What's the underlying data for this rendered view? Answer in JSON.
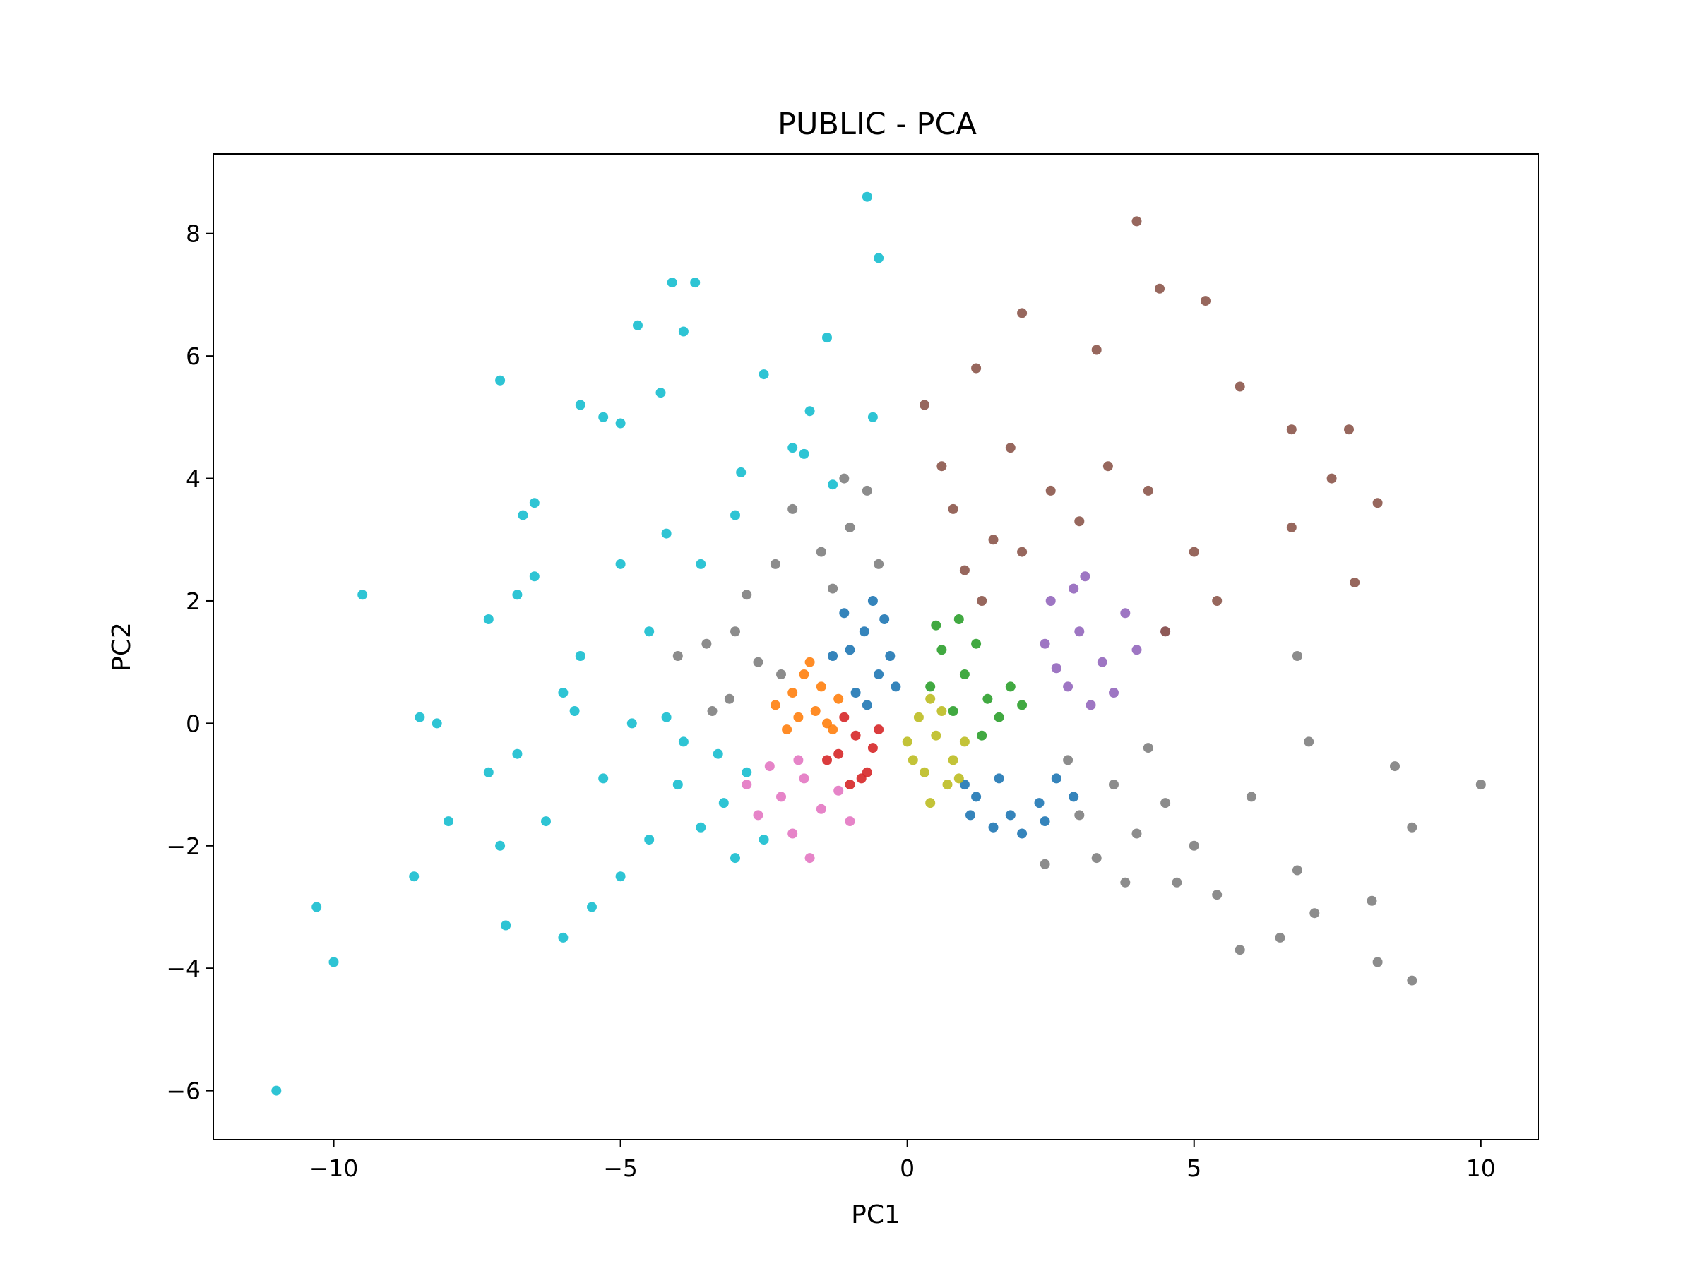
{
  "chart_data": {
    "type": "scatter",
    "title": "PUBLIC - PCA",
    "xlabel": "PC1",
    "ylabel": "PC2",
    "xlim": [
      -12.1,
      11
    ],
    "ylim": [
      -6.8,
      9.3
    ],
    "xticks": [
      -10,
      -5,
      0,
      5,
      10
    ],
    "xtick_labels": [
      "−10",
      "−5",
      "0",
      "5",
      "10"
    ],
    "yticks": [
      -6,
      -4,
      -2,
      0,
      2,
      4,
      6,
      8
    ],
    "ytick_labels": [
      "−6",
      "−4",
      "−2",
      "0",
      "2",
      "4",
      "6",
      "8"
    ],
    "grid": false,
    "legend": "none",
    "series": [
      {
        "color": "#1f77b4",
        "points": [
          [
            -0.75,
            1.5
          ],
          [
            -0.6,
            2.0
          ],
          [
            -1.0,
            1.2
          ],
          [
            -0.5,
            0.8
          ],
          [
            -0.9,
            0.5
          ],
          [
            -1.3,
            1.1
          ],
          [
            -0.4,
            1.7
          ],
          [
            -0.2,
            0.6
          ],
          [
            -0.7,
            0.3
          ],
          [
            -1.1,
            1.8
          ],
          [
            -0.3,
            1.1
          ],
          [
            1.2,
            -1.2
          ],
          [
            1.8,
            -1.5
          ],
          [
            2.3,
            -1.3
          ],
          [
            1.5,
            -1.7
          ],
          [
            2.6,
            -0.9
          ],
          [
            2.0,
            -1.8
          ],
          [
            1.0,
            -1.0
          ],
          [
            2.9,
            -1.2
          ],
          [
            2.4,
            -1.6
          ],
          [
            1.6,
            -0.9
          ],
          [
            1.1,
            -1.5
          ]
        ]
      },
      {
        "color": "#ff7f0e",
        "points": [
          [
            -1.6,
            0.2
          ],
          [
            -2.0,
            0.5
          ],
          [
            -1.4,
            0.0
          ],
          [
            -1.8,
            0.8
          ],
          [
            -2.3,
            0.3
          ],
          [
            -1.2,
            0.4
          ],
          [
            -1.9,
            0.1
          ],
          [
            -1.5,
            0.6
          ],
          [
            -2.1,
            -0.1
          ],
          [
            -1.7,
            1.0
          ],
          [
            -1.3,
            -0.1
          ]
        ]
      },
      {
        "color": "#2ca02c",
        "points": [
          [
            0.6,
            1.2
          ],
          [
            1.0,
            0.8
          ],
          [
            1.4,
            0.4
          ],
          [
            0.8,
            0.2
          ],
          [
            1.8,
            0.6
          ],
          [
            0.5,
            1.6
          ],
          [
            1.2,
            1.3
          ],
          [
            1.6,
            0.1
          ],
          [
            2.0,
            0.3
          ],
          [
            0.9,
            1.7
          ],
          [
            1.3,
            -0.2
          ],
          [
            0.4,
            0.6
          ]
        ]
      },
      {
        "color": "#d62728",
        "points": [
          [
            -0.9,
            -0.2
          ],
          [
            -1.2,
            -0.5
          ],
          [
            -0.7,
            -0.8
          ],
          [
            -1.0,
            -1.0
          ],
          [
            -0.6,
            -0.4
          ],
          [
            -1.4,
            -0.6
          ],
          [
            -0.8,
            -0.9
          ],
          [
            -0.5,
            -0.1
          ],
          [
            -1.1,
            0.1
          ]
        ]
      },
      {
        "color": "#9467bd",
        "points": [
          [
            3.0,
            1.5
          ],
          [
            3.4,
            1.0
          ],
          [
            2.6,
            0.9
          ],
          [
            3.8,
            1.8
          ],
          [
            2.9,
            2.2
          ],
          [
            3.6,
            0.5
          ],
          [
            2.4,
            1.3
          ],
          [
            4.0,
            1.2
          ],
          [
            3.2,
            0.3
          ],
          [
            4.5,
            1.5
          ],
          [
            2.8,
            0.6
          ],
          [
            3.1,
            2.4
          ],
          [
            2.5,
            2.0
          ]
        ]
      },
      {
        "color": "#8c564b",
        "points": [
          [
            1.0,
            2.5
          ],
          [
            1.5,
            3.0
          ],
          [
            0.8,
            3.5
          ],
          [
            2.0,
            2.8
          ],
          [
            1.3,
            2.0
          ],
          [
            2.5,
            3.8
          ],
          [
            0.6,
            4.2
          ],
          [
            1.8,
            4.5
          ],
          [
            3.0,
            3.3
          ],
          [
            3.5,
            4.2
          ],
          [
            4.2,
            3.8
          ],
          [
            5.0,
            2.8
          ],
          [
            1.2,
            5.8
          ],
          [
            2.0,
            6.7
          ],
          [
            4.0,
            8.2
          ],
          [
            4.4,
            7.1
          ],
          [
            5.2,
            6.9
          ],
          [
            5.8,
            5.5
          ],
          [
            6.7,
            4.8
          ],
          [
            7.7,
            4.8
          ],
          [
            7.4,
            4.0
          ],
          [
            8.2,
            3.6
          ],
          [
            7.8,
            2.3
          ],
          [
            6.7,
            3.2
          ],
          [
            5.4,
            2.0
          ],
          [
            4.5,
            1.5
          ],
          [
            3.3,
            6.1
          ],
          [
            0.3,
            5.2
          ]
        ]
      },
      {
        "color": "#e377c2",
        "points": [
          [
            -2.2,
            -1.2
          ],
          [
            -1.8,
            -0.9
          ],
          [
            -2.6,
            -1.5
          ],
          [
            -1.5,
            -1.4
          ],
          [
            -2.0,
            -1.8
          ],
          [
            -1.2,
            -1.1
          ],
          [
            -2.4,
            -0.7
          ],
          [
            -1.7,
            -2.2
          ],
          [
            -1.0,
            -1.6
          ],
          [
            -2.8,
            -1.0
          ],
          [
            -1.9,
            -0.6
          ]
        ]
      },
      {
        "color": "#7f7f7f",
        "points": [
          [
            -1.5,
            2.8
          ],
          [
            -1.0,
            3.2
          ],
          [
            -2.0,
            3.5
          ],
          [
            -0.7,
            3.8
          ],
          [
            -1.3,
            2.2
          ],
          [
            -0.5,
            2.6
          ],
          [
            -2.3,
            2.6
          ],
          [
            -3.0,
            1.5
          ],
          [
            -2.6,
            1.0
          ],
          [
            -3.5,
            1.3
          ],
          [
            -2.2,
            0.8
          ],
          [
            -3.1,
            0.4
          ],
          [
            -4.0,
            1.1
          ],
          [
            -2.8,
            2.1
          ],
          [
            -3.4,
            0.2
          ],
          [
            -1.1,
            4.0
          ],
          [
            3.0,
            -1.5
          ],
          [
            3.6,
            -1.0
          ],
          [
            4.0,
            -1.8
          ],
          [
            3.3,
            -2.2
          ],
          [
            4.5,
            -1.3
          ],
          [
            5.0,
            -2.0
          ],
          [
            2.8,
            -0.6
          ],
          [
            4.2,
            -0.4
          ],
          [
            5.4,
            -2.8
          ],
          [
            6.0,
            -1.2
          ],
          [
            6.5,
            -3.5
          ],
          [
            6.8,
            -2.4
          ],
          [
            7.1,
            -3.1
          ],
          [
            7.0,
            -0.3
          ],
          [
            6.8,
            1.1
          ],
          [
            8.5,
            -0.7
          ],
          [
            10.0,
            -1.0
          ],
          [
            8.8,
            -1.7
          ],
          [
            8.1,
            -2.9
          ],
          [
            8.2,
            -3.9
          ],
          [
            8.8,
            -4.2
          ],
          [
            5.8,
            -3.7
          ],
          [
            4.7,
            -2.6
          ],
          [
            3.8,
            -2.6
          ],
          [
            2.4,
            -2.3
          ]
        ]
      },
      {
        "color": "#bcbd22",
        "points": [
          [
            0.2,
            0.1
          ],
          [
            0.5,
            -0.2
          ],
          [
            0.0,
            -0.3
          ],
          [
            0.4,
            0.4
          ],
          [
            0.8,
            -0.6
          ],
          [
            0.3,
            -0.8
          ],
          [
            1.0,
            -0.3
          ],
          [
            0.6,
            0.2
          ],
          [
            0.9,
            -0.9
          ],
          [
            0.1,
            -0.6
          ],
          [
            0.4,
            -1.3
          ],
          [
            0.7,
            -1.0
          ]
        ]
      },
      {
        "color": "#17becf",
        "points": [
          [
            -3.2,
            -1.3
          ],
          [
            -2.8,
            -0.8
          ],
          [
            -3.6,
            -1.7
          ],
          [
            -2.5,
            -1.9
          ],
          [
            -3.0,
            -2.2
          ],
          [
            -4.0,
            -1.0
          ],
          [
            -3.3,
            -0.5
          ],
          [
            -4.5,
            -1.9
          ],
          [
            -5.0,
            -2.5
          ],
          [
            -5.5,
            -3.0
          ],
          [
            -6.0,
            -3.5
          ],
          [
            -5.3,
            -0.9
          ],
          [
            -4.2,
            0.1
          ],
          [
            -5.8,
            0.2
          ],
          [
            -6.3,
            -1.6
          ],
          [
            -6.8,
            -0.5
          ],
          [
            -7.0,
            -3.3
          ],
          [
            -7.1,
            -2.0
          ],
          [
            -8.0,
            -1.6
          ],
          [
            -8.6,
            -2.5
          ],
          [
            -10.3,
            -3.0
          ],
          [
            -10.0,
            -3.9
          ],
          [
            -11.0,
            -6.0
          ],
          [
            -8.5,
            0.1
          ],
          [
            -8.2,
            0.0
          ],
          [
            -7.3,
            -0.8
          ],
          [
            -9.5,
            2.1
          ],
          [
            -7.3,
            1.7
          ],
          [
            -6.5,
            2.4
          ],
          [
            -6.7,
            3.4
          ],
          [
            -6.5,
            3.6
          ],
          [
            -6.8,
            2.1
          ],
          [
            -7.1,
            5.6
          ],
          [
            -5.7,
            5.2
          ],
          [
            -5.3,
            5.0
          ],
          [
            -5.0,
            4.9
          ],
          [
            -4.7,
            6.5
          ],
          [
            -4.3,
            5.4
          ],
          [
            -3.9,
            6.4
          ],
          [
            -3.7,
            7.2
          ],
          [
            -4.1,
            7.2
          ],
          [
            -2.5,
            5.7
          ],
          [
            -1.4,
            6.3
          ],
          [
            -1.7,
            5.1
          ],
          [
            -0.7,
            8.6
          ],
          [
            -0.5,
            7.6
          ],
          [
            -1.3,
            3.9
          ],
          [
            -2.0,
            4.5
          ],
          [
            -3.0,
            3.4
          ],
          [
            -3.6,
            2.6
          ],
          [
            -4.2,
            3.1
          ],
          [
            -5.0,
            2.6
          ],
          [
            -4.5,
            1.5
          ],
          [
            -5.7,
            1.1
          ],
          [
            -6.0,
            0.5
          ],
          [
            -4.8,
            0.0
          ],
          [
            -3.9,
            -0.3
          ],
          [
            -2.9,
            4.1
          ],
          [
            -1.8,
            4.4
          ],
          [
            -0.6,
            5.0
          ]
        ]
      }
    ]
  }
}
